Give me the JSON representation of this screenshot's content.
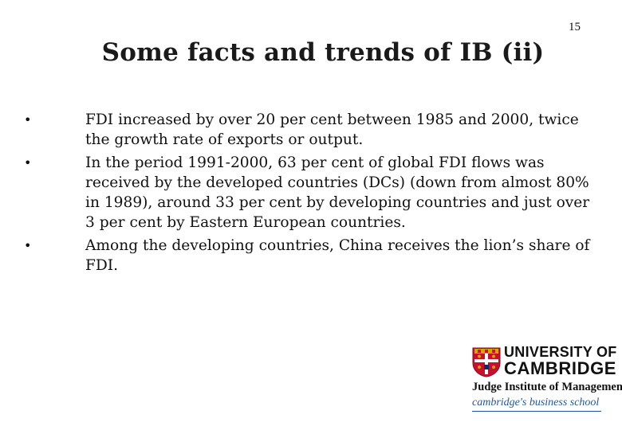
{
  "slide": {
    "number": "15",
    "title": "Some facts and trends of IB (ii)",
    "bullets": [
      {
        "text": "FDI increased by over 20 per cent between 1985 and 2000, twice the growth rate of exports or output."
      },
      {
        "text": "In the period 1991-2000, 63 per cent of global FDI flows was received by the developed countries (DCs) (down from almost 80% in 1989), around 33 per cent by developing countries and just over 3 per cent by Eastern European countries."
      },
      {
        "text": "Among the developing countries, China receives the lion’s share of FDI."
      }
    ],
    "bullet_glyph": "•"
  },
  "logo": {
    "line1": "UNIVERSITY OF",
    "line2": "CAMBRIDGE",
    "line3": "Judge Institute of Management",
    "line4": "cambridge's business school",
    "colors": {
      "shield_red": "#c8102e",
      "cross_white": "#ffffff",
      "accent_blue": "#1e57a8",
      "gold": "#d9a400"
    }
  }
}
